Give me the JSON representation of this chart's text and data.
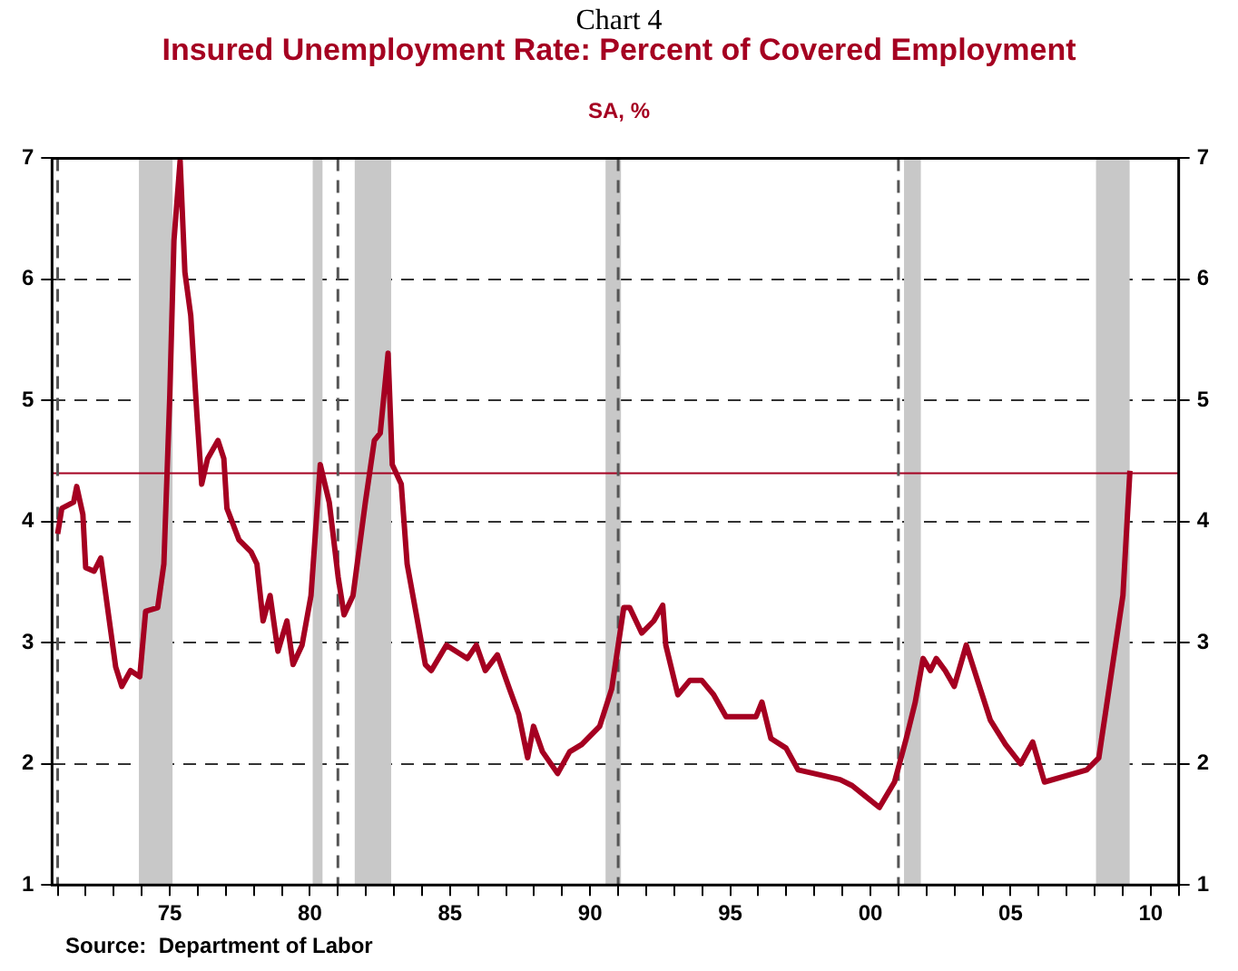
{
  "chart_data": {
    "type": "line",
    "title": "Insured Unemployment Rate: Percent of Covered Employment",
    "subtitle": "SA, %",
    "annotations": [
      "Chart 4",
      "Source:  Department of Labor"
    ],
    "x": [
      1971.0,
      1971.15,
      1971.57,
      1971.68,
      1971.9,
      1972.0,
      1972.3,
      1972.54,
      1972.75,
      1973.07,
      1973.29,
      1973.6,
      1973.93,
      1974.14,
      1974.57,
      1974.79,
      1975.0,
      1975.15,
      1975.37,
      1975.54,
      1975.75,
      1975.97,
      1976.14,
      1976.35,
      1976.72,
      1976.93,
      1977.04,
      1977.47,
      1977.9,
      1978.11,
      1978.33,
      1978.58,
      1978.86,
      1979.18,
      1979.4,
      1979.72,
      1980.04,
      1980.37,
      1980.69,
      1981.01,
      1981.22,
      1981.54,
      1981.98,
      1982.3,
      1982.51,
      1982.79,
      1982.94,
      1983.26,
      1983.47,
      1983.8,
      1984.12,
      1984.33,
      1984.87,
      1985.62,
      1985.94,
      1986.26,
      1986.69,
      1987.12,
      1987.45,
      1987.77,
      1987.98,
      1988.3,
      1988.84,
      1989.27,
      1989.7,
      1990.34,
      1990.77,
      1991.2,
      1991.41,
      1991.84,
      1992.27,
      1992.59,
      1992.7,
      1993.13,
      1993.56,
      1993.98,
      1994.41,
      1994.85,
      1995.92,
      1996.13,
      1996.45,
      1996.99,
      1997.42,
      1998.38,
      1998.92,
      1999.35,
      1999.78,
      2000.32,
      2000.86,
      2001.28,
      2001.6,
      2001.88,
      2002.14,
      2002.35,
      2002.67,
      2002.99,
      2003.42,
      2003.85,
      2004.28,
      2004.82,
      2005.36,
      2005.79,
      2006.21,
      2007.72,
      2008.15,
      2008.58,
      2009.01,
      2009.26
    ],
    "series": [
      {
        "color": "#a50021",
        "values": [
          3.9,
          4.11,
          4.16,
          4.29,
          4.06,
          3.62,
          3.59,
          3.7,
          3.34,
          2.8,
          2.64,
          2.77,
          2.72,
          3.26,
          3.29,
          3.65,
          5.03,
          6.32,
          6.98,
          6.06,
          5.7,
          4.88,
          4.31,
          4.52,
          4.67,
          4.52,
          4.11,
          3.85,
          3.75,
          3.65,
          3.18,
          3.39,
          2.93,
          3.18,
          2.82,
          2.98,
          3.39,
          4.47,
          4.16,
          3.54,
          3.23,
          3.39,
          4.16,
          4.67,
          4.73,
          5.39,
          4.47,
          4.31,
          3.65,
          3.23,
          2.82,
          2.77,
          2.98,
          2.87,
          2.98,
          2.77,
          2.9,
          2.62,
          2.41,
          2.05,
          2.31,
          2.1,
          1.92,
          2.1,
          2.16,
          2.31,
          2.62,
          3.29,
          3.29,
          3.08,
          3.18,
          3.31,
          2.98,
          2.57,
          2.69,
          2.69,
          2.57,
          2.39,
          2.39,
          2.51,
          2.21,
          2.13,
          1.95,
          1.9,
          1.87,
          1.82,
          1.74,
          1.64,
          1.85,
          2.21,
          2.51,
          2.87,
          2.77,
          2.87,
          2.77,
          2.64,
          2.98,
          2.67,
          2.36,
          2.16,
          2.0,
          2.18,
          1.85,
          1.95,
          2.05,
          2.72,
          3.39,
          4.42
        ]
      }
    ],
    "xlim": [
      1970.8,
      2011
    ],
    "xticks": [
      {
        "value": 1971,
        "label": null
      },
      {
        "value": 1972,
        "label": null
      },
      {
        "value": 1973,
        "label": null
      },
      {
        "value": 1974,
        "label": null
      },
      {
        "value": 1975,
        "label": "75"
      },
      {
        "value": 1976,
        "label": null
      },
      {
        "value": 1977,
        "label": null
      },
      {
        "value": 1978,
        "label": null
      },
      {
        "value": 1979,
        "label": null
      },
      {
        "value": 1980,
        "label": "80"
      },
      {
        "value": 1981,
        "label": null
      },
      {
        "value": 1982,
        "label": null
      },
      {
        "value": 1983,
        "label": null
      },
      {
        "value": 1984,
        "label": null
      },
      {
        "value": 1985,
        "label": "85"
      },
      {
        "value": 1986,
        "label": null
      },
      {
        "value": 1987,
        "label": null
      },
      {
        "value": 1988,
        "label": null
      },
      {
        "value": 1989,
        "label": null
      },
      {
        "value": 1990,
        "label": "90"
      },
      {
        "value": 1991,
        "label": null
      },
      {
        "value": 1992,
        "label": null
      },
      {
        "value": 1993,
        "label": null
      },
      {
        "value": 1994,
        "label": null
      },
      {
        "value": 1995,
        "label": "95"
      },
      {
        "value": 1996,
        "label": null
      },
      {
        "value": 1997,
        "label": null
      },
      {
        "value": 1998,
        "label": null
      },
      {
        "value": 1999,
        "label": null
      },
      {
        "value": 2000,
        "label": "00"
      },
      {
        "value": 2001,
        "label": null
      },
      {
        "value": 2002,
        "label": null
      },
      {
        "value": 2003,
        "label": null
      },
      {
        "value": 2004,
        "label": null
      },
      {
        "value": 2005,
        "label": "05"
      },
      {
        "value": 2006,
        "label": null
      },
      {
        "value": 2007,
        "label": null
      },
      {
        "value": 2008,
        "label": null
      },
      {
        "value": 2009,
        "label": null
      },
      {
        "value": 2010,
        "label": "10"
      },
      {
        "value": 2011,
        "label": null
      }
    ],
    "ylim": [
      1,
      7
    ],
    "yticks": [
      1,
      2,
      3,
      4,
      5,
      6,
      7
    ],
    "y2lim": [
      1,
      7
    ],
    "y2ticks": [
      1,
      2,
      3,
      4,
      5,
      6,
      7
    ],
    "grid": "y",
    "marker": "none",
    "line_style": "solid",
    "ref_lines": [
      {
        "axis": "y",
        "value": 4.4,
        "color": "#a50021",
        "line_style": "solid"
      },
      {
        "axis": "x",
        "value": 1971,
        "color": "#555555",
        "line_style": "dashed"
      },
      {
        "axis": "x",
        "value": 1981,
        "color": "#555555",
        "line_style": "dashed"
      },
      {
        "axis": "x",
        "value": 1991,
        "color": "#555555",
        "line_style": "dashed"
      },
      {
        "axis": "x",
        "value": 2001,
        "color": "#555555",
        "line_style": "dashed"
      }
    ],
    "bands": [
      {
        "axis": "x",
        "from": 1973.9,
        "to": 1975.1,
        "color": "#c8c8c8"
      },
      {
        "axis": "x",
        "from": 1980.1,
        "to": 1980.45,
        "color": "#c8c8c8"
      },
      {
        "axis": "x",
        "from": 1981.6,
        "to": 1982.9,
        "color": "#c8c8c8"
      },
      {
        "axis": "x",
        "from": 1990.55,
        "to": 1991.1,
        "color": "#c8c8c8"
      },
      {
        "axis": "x",
        "from": 2001.2,
        "to": 2001.8,
        "color": "#c8c8c8"
      },
      {
        "axis": "x",
        "from": 2008.05,
        "to": 2009.25,
        "color": "#c8c8c8"
      }
    ]
  }
}
